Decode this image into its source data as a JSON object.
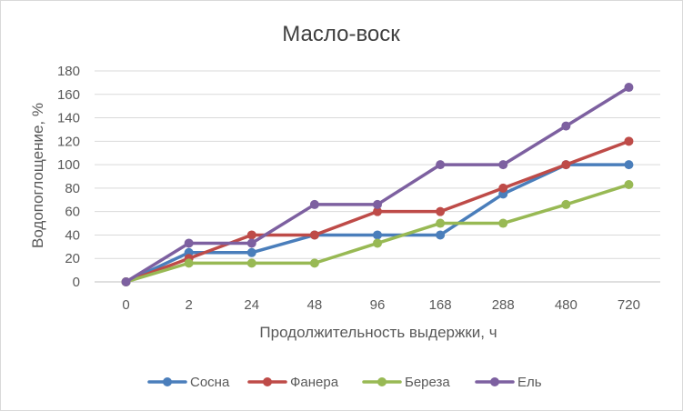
{
  "chart_data": {
    "type": "line",
    "title": "Масло-воск",
    "xlabel": "Продолжительность выдержки, ч",
    "ylabel": "Водопоглощение, %",
    "categories": [
      "0",
      "2",
      "24",
      "48",
      "96",
      "168",
      "288",
      "480",
      "720"
    ],
    "ylim": [
      0,
      180
    ],
    "yticks": [
      0,
      20,
      40,
      60,
      80,
      100,
      120,
      140,
      160,
      180
    ],
    "grid": true,
    "legend_position": "bottom",
    "series": [
      {
        "name": "Сосна",
        "color": "#4a7ebb",
        "values": [
          0,
          25,
          25,
          40,
          40,
          40,
          75,
          100,
          100
        ]
      },
      {
        "name": "Фанера",
        "color": "#be4b48",
        "values": [
          0,
          20,
          40,
          40,
          60,
          60,
          80,
          100,
          120
        ]
      },
      {
        "name": "Береза",
        "color": "#98b954",
        "values": [
          0,
          16,
          16,
          16,
          33,
          50,
          50,
          66,
          83
        ]
      },
      {
        "name": "Ель",
        "color": "#7d60a0",
        "values": [
          0,
          33,
          33,
          66,
          66,
          100,
          100,
          133,
          166
        ]
      }
    ]
  }
}
